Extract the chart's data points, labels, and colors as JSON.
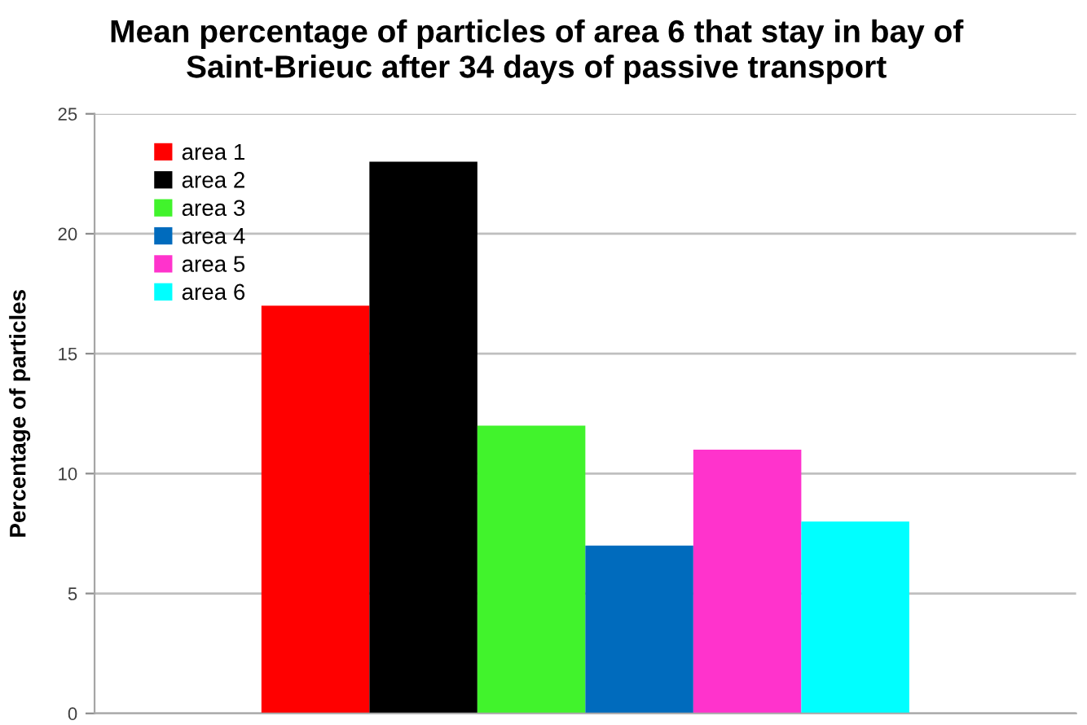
{
  "chart_data": {
    "type": "bar",
    "title": "Mean percentage of particles of area 6 that stay in bay of\nSaint-Brieuc after 34 days of passive transport",
    "ylabel": "Percentage of particles",
    "categories": [
      null
    ],
    "series": [
      {
        "name": "area 1",
        "color": "#ff0000",
        "values": [
          17
        ]
      },
      {
        "name": "area 2",
        "color": "#000000",
        "values": [
          23
        ]
      },
      {
        "name": "area 3",
        "color": "#41f32c",
        "values": [
          12
        ]
      },
      {
        "name": "area 4",
        "color": "#006bbd",
        "values": [
          7
        ]
      },
      {
        "name": "area 5",
        "color": "#ff33cc",
        "values": [
          11
        ]
      },
      {
        "name": "area 6",
        "color": "#00ffff",
        "values": [
          8
        ]
      }
    ],
    "ylim": [
      0,
      25
    ],
    "yticks": [
      0,
      5,
      10,
      15,
      20,
      25
    ],
    "grid": "y",
    "legend": "top left"
  }
}
